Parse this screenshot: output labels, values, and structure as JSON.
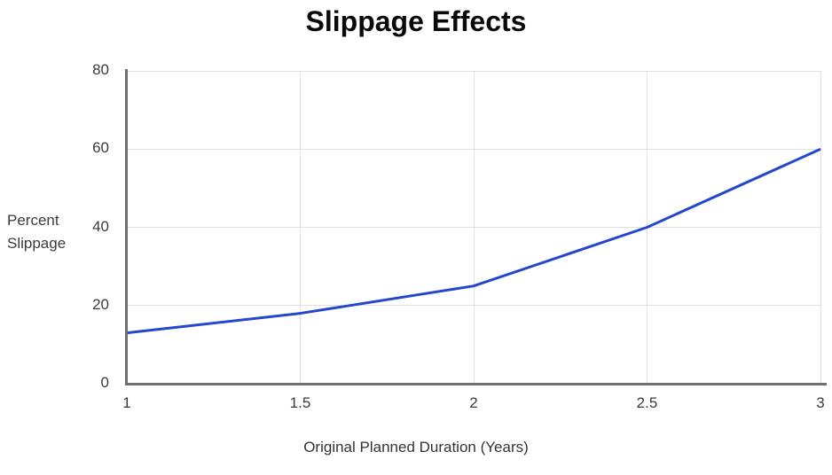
{
  "chart_data": {
    "type": "line",
    "title": "Slippage Effects",
    "xlabel": "Original Planned Duration (Years)",
    "ylabel": "Percent Slippage",
    "x": [
      1,
      1.5,
      2,
      2.5,
      3
    ],
    "series": [
      {
        "name": "Percent Slippage",
        "values": [
          13,
          18,
          25,
          40,
          60
        ],
        "color": "#2547cb"
      }
    ],
    "xlim": [
      1,
      3
    ],
    "ylim": [
      0,
      80
    ],
    "x_ticks": [
      1,
      1.5,
      2,
      2.5,
      3
    ],
    "x_tick_labels": [
      "1",
      "1.5",
      "2",
      "2.5",
      "3"
    ],
    "y_ticks": [
      0,
      20,
      40,
      60,
      80
    ],
    "y_tick_labels": [
      "0",
      "20",
      "40",
      "60",
      "80"
    ],
    "grid": true,
    "legend": false,
    "colors": {
      "line": "#2547cb",
      "grid": "#e0e0e0",
      "axis": "#6f6f6f",
      "tick_text": "#3a3a3a",
      "title_text": "#0a0a0a",
      "background": "#ffffff"
    }
  }
}
